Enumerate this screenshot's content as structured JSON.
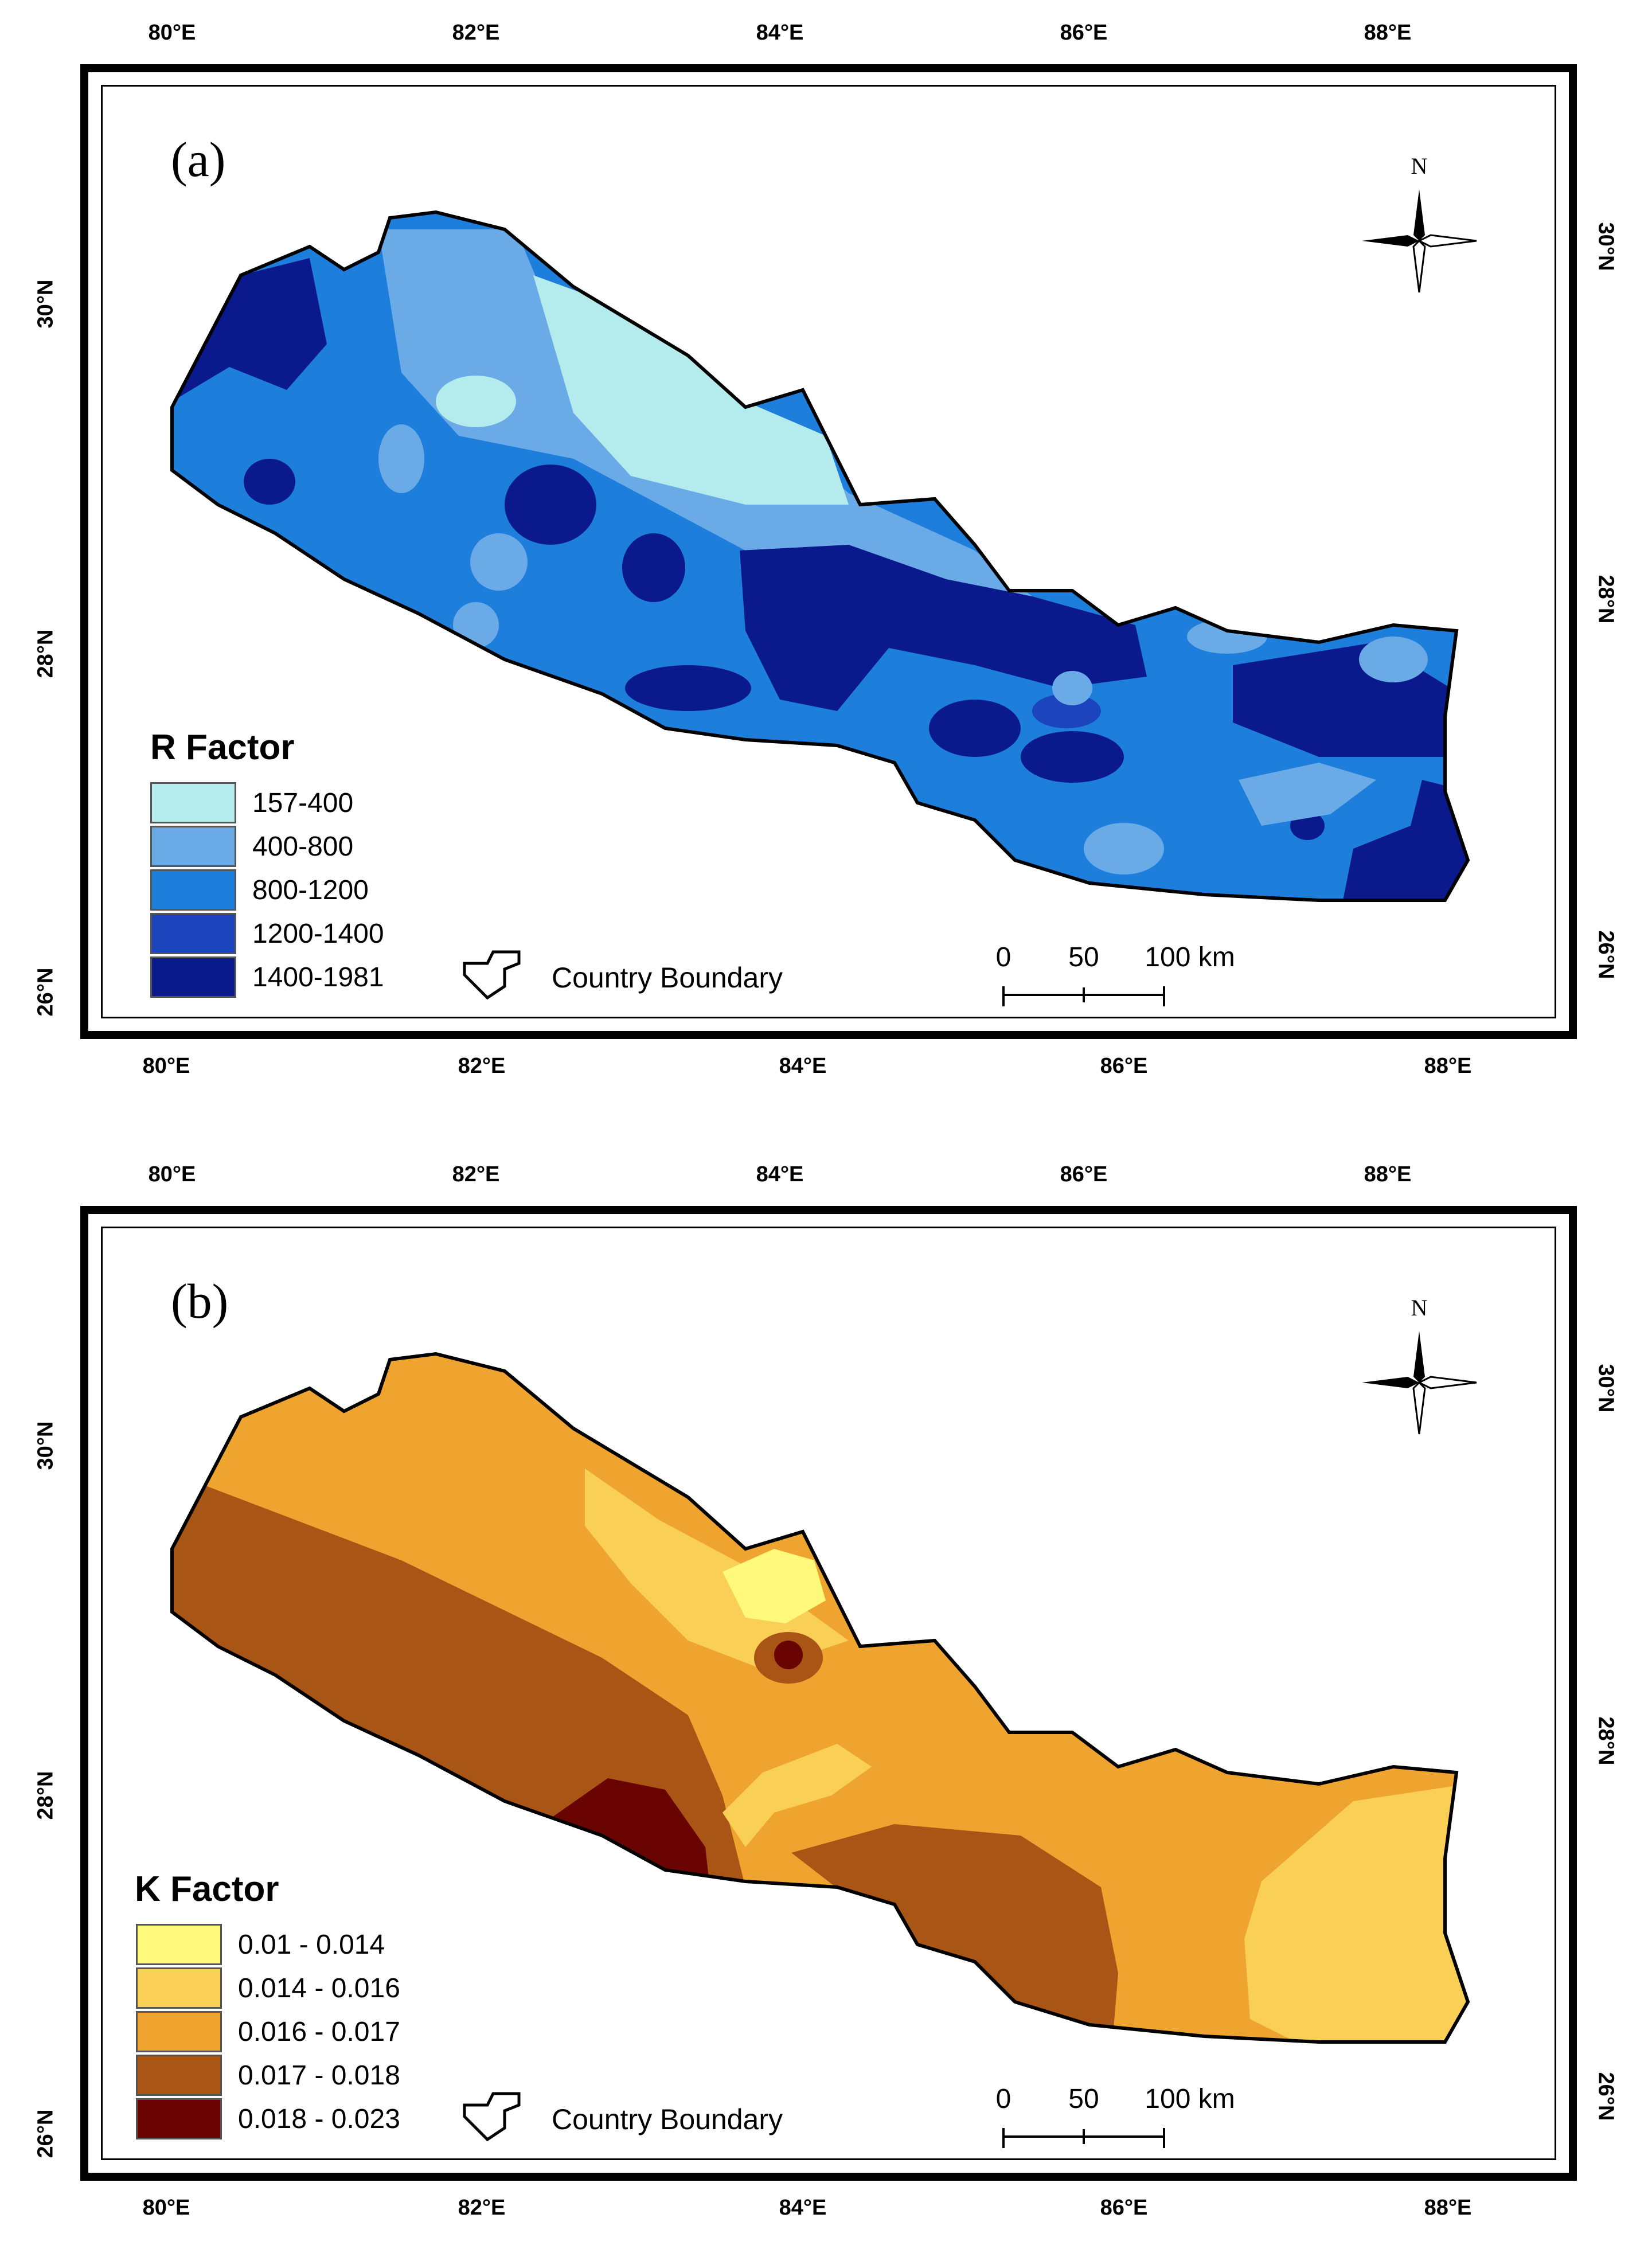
{
  "axes": {
    "longitude_ticks": [
      "80°E",
      "82°E",
      "84°E",
      "86°E",
      "88°E"
    ],
    "latitude_ticks_left": [
      "30°N",
      "28°N",
      "26°N"
    ],
    "latitude_ticks_right": [
      "30°N",
      "28°N",
      "26°N"
    ]
  },
  "panels": [
    {
      "label": "(a)",
      "legend_title": "R Factor",
      "classes": [
        {
          "label": "157-400",
          "color": "#b4ecee"
        },
        {
          "label": "400-800",
          "color": "#6aaae6"
        },
        {
          "label": "800-1200",
          "color": "#1e7edc"
        },
        {
          "label": "1200-1400",
          "color": "#1c44bc"
        },
        {
          "label": "1400-1981",
          "color": "#0a1a8c"
        }
      ],
      "boundary_label": "Country Boundary",
      "scale": {
        "labels": [
          "0",
          "50",
          "100 km"
        ]
      },
      "north_label": "N"
    },
    {
      "label": "(b)",
      "legend_title": "K Factor",
      "classes": [
        {
          "label": "0.01 - 0.014",
          "color": "#fef97a"
        },
        {
          "label": "0.014 - 0.016",
          "color": "#f9cf55"
        },
        {
          "label": "0.016 - 0.017",
          "color": "#eea42f"
        },
        {
          "label": "0.017 - 0.018",
          "color": "#a95516"
        },
        {
          "label": "0.018 - 0.023",
          "color": "#6a0402"
        }
      ],
      "boundary_label": "Country Boundary",
      "scale": {
        "labels": [
          "0",
          "50",
          "100 km"
        ]
      },
      "north_label": "N"
    }
  ]
}
